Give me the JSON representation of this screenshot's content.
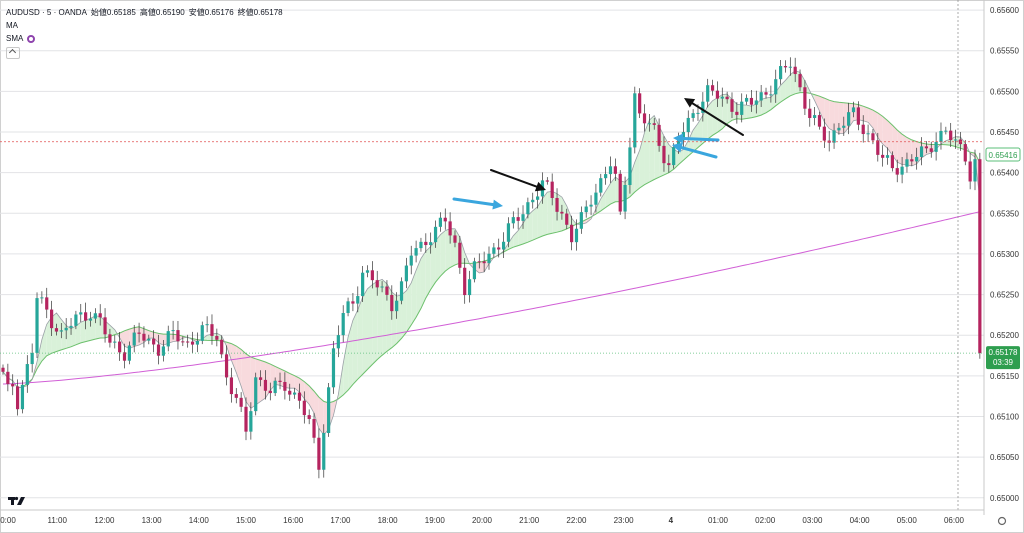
{
  "legend": {
    "symbol_line": "AUDUSD · 5 · OANDA",
    "open": "始値0.65185",
    "high": "高値0.65190",
    "low": "安値0.65176",
    "close": "終値0.65178",
    "ma_label": "MA",
    "sma_label": "SMA",
    "settings_icon": "gear-icon"
  },
  "price_badges": {
    "current_price": "0.65178",
    "countdown": "03:39",
    "ma_price": "0.65416"
  },
  "colors": {
    "bull": "#26a69a",
    "bear": "#b5245f",
    "sma_long": "#d15fd6",
    "cloud_bull": "#d9f1d9",
    "cloud_bear": "#f8dadd",
    "price_tag": "#2e9e4f",
    "arrow_blue": "#3aa6de",
    "arrow_black": "#111111"
  },
  "chart_data": {
    "type": "candlestick",
    "symbol": "AUDUSD",
    "timeframe": "5",
    "source": "OANDA",
    "y_ticks": [
      "0.65600",
      "0.65550",
      "0.65500",
      "0.65450",
      "0.65400",
      "0.65350",
      "0.65300",
      "0.65250",
      "0.65200",
      "0.65150",
      "0.65100",
      "0.65050",
      "0.65000"
    ],
    "x_ticks": [
      "0:00",
      "11:00",
      "12:00",
      "13:00",
      "14:00",
      "15:00",
      "16:00",
      "17:00",
      "18:00",
      "19:00",
      "20:00",
      "21:00",
      "22:00",
      "23:00",
      "4",
      "01:00",
      "02:00",
      "03:00",
      "04:00",
      "05:00",
      "06:00"
    ],
    "ylim": [
      0.64985,
      0.65605
    ],
    "grid": true,
    "horizontal_line": 0.65438,
    "last_close": 0.65178,
    "anchors": [
      [
        0,
        0.6515
      ],
      [
        1,
        0.6513
      ],
      [
        2,
        0.6514
      ],
      [
        3,
        0.6512
      ],
      [
        6,
        0.6518
      ],
      [
        7,
        0.65245
      ],
      [
        9,
        0.6523
      ],
      [
        12,
        0.652
      ],
      [
        15,
        0.6522
      ],
      [
        18,
        0.6523
      ],
      [
        20,
        0.65215
      ],
      [
        22,
        0.6519
      ],
      [
        25,
        0.6518
      ],
      [
        28,
        0.652
      ],
      [
        32,
        0.65185
      ],
      [
        35,
        0.652
      ],
      [
        38,
        0.6519
      ],
      [
        41,
        0.65205
      ],
      [
        44,
        0.652
      ],
      [
        46,
        0.6515
      ],
      [
        48,
        0.6512
      ],
      [
        50,
        0.6508
      ],
      [
        52,
        0.6515
      ],
      [
        55,
        0.6513
      ],
      [
        58,
        0.6514
      ],
      [
        61,
        0.6512
      ],
      [
        63,
        0.6509
      ],
      [
        65,
        0.6504
      ],
      [
        66,
        0.6509
      ],
      [
        68,
        0.6518
      ],
      [
        70,
        0.65225
      ],
      [
        72,
        0.6524
      ],
      [
        74,
        0.6528
      ],
      [
        77,
        0.6526
      ],
      [
        80,
        0.6524
      ],
      [
        82,
        0.6526
      ],
      [
        84,
        0.653
      ],
      [
        86,
        0.6531
      ],
      [
        88,
        0.65325
      ],
      [
        91,
        0.6534
      ],
      [
        93,
        0.6531
      ],
      [
        95,
        0.6526
      ],
      [
        97,
        0.6528
      ],
      [
        100,
        0.653
      ],
      [
        103,
        0.6532
      ],
      [
        106,
        0.65345
      ],
      [
        109,
        0.6537
      ],
      [
        111,
        0.65385
      ],
      [
        113,
        0.6537
      ],
      [
        115,
        0.6535
      ],
      [
        117,
        0.6532
      ],
      [
        119,
        0.6534
      ],
      [
        121,
        0.6537
      ],
      [
        123,
        0.6539
      ],
      [
        125,
        0.6541
      ],
      [
        126,
        0.6539
      ],
      [
        127,
        0.65345
      ],
      [
        129,
        0.6544
      ],
      [
        130,
        0.65495
      ],
      [
        131,
        0.6547
      ],
      [
        134,
        0.6545
      ],
      [
        137,
        0.6541
      ],
      [
        139,
        0.6544
      ],
      [
        141,
        0.6546
      ],
      [
        143,
        0.65485
      ],
      [
        145,
        0.655
      ],
      [
        148,
        0.6549
      ],
      [
        151,
        0.6548
      ],
      [
        154,
        0.65485
      ],
      [
        157,
        0.655
      ],
      [
        160,
        0.6552
      ],
      [
        162,
        0.65535
      ],
      [
        164,
        0.65505
      ],
      [
        166,
        0.6547
      ],
      [
        168,
        0.6545
      ],
      [
        170,
        0.6544
      ],
      [
        172,
        0.6546
      ],
      [
        175,
        0.6547
      ],
      [
        177,
        0.65455
      ],
      [
        179,
        0.6544
      ],
      [
        181,
        0.65415
      ],
      [
        183,
        0.65405
      ],
      [
        185,
        0.6541
      ],
      [
        188,
        0.6542
      ],
      [
        190,
        0.65425
      ],
      [
        192,
        0.65445
      ],
      [
        194,
        0.6545
      ],
      [
        196,
        0.65435
      ],
      [
        198,
        0.6542
      ],
      [
        199,
        0.654
      ],
      [
        200,
        0.65415
      ],
      [
        201,
        0.6542
      ]
    ]
  }
}
